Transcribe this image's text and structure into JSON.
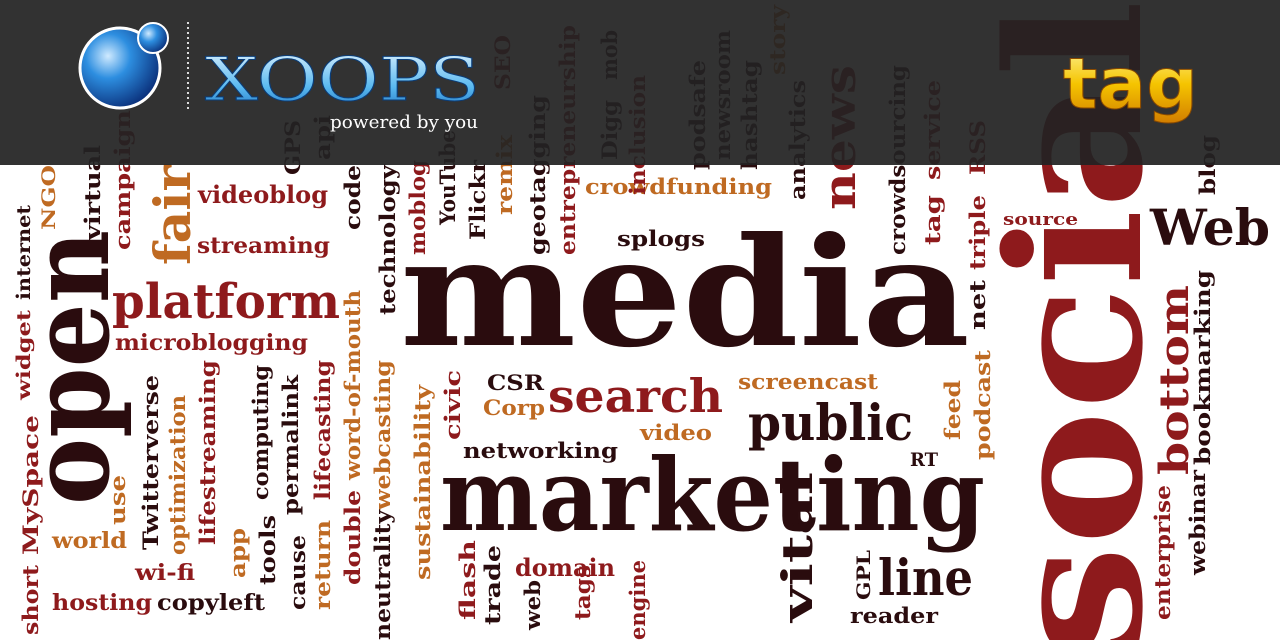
{
  "header": {
    "logo": "XOOPS",
    "tagline": "powered by you",
    "badge": "tag"
  },
  "words": [
    "media",
    "marketing",
    "platform",
    "search",
    "public",
    "line",
    "Web",
    "videoblog",
    "streaming",
    "microblogging",
    "crowdfunding",
    "splogs",
    "source",
    "screencast",
    "CSR",
    "Corp",
    "video",
    "networking",
    "RT",
    "world",
    "wi-fi",
    "hosting",
    "copyleft",
    "domain",
    "reader",
    "open",
    "social",
    "fair",
    "news",
    "bottom",
    "virtual",
    "campaign",
    "NGO",
    "internet",
    "widget",
    "MySpace",
    "short",
    "use",
    "Twitterverse",
    "optimization",
    "lifestreaming",
    "app",
    "computing",
    "tools",
    "permalink",
    "cause",
    "lifecasting",
    "return",
    "word-of-mouth",
    "double",
    "technology",
    "code",
    "webcasting",
    "neutrality",
    "sustainability",
    "civic",
    "flash",
    "trade",
    "moblog",
    "YouTube",
    "Flickr",
    "remix",
    "geotagging",
    "entrepreneurship",
    "inclusion",
    "Digg",
    "mob",
    "podsafe",
    "newsroom",
    "hashtag",
    "analytics",
    "story",
    "crowdsourcing",
    "service",
    "tag",
    "RSS",
    "triple",
    "net",
    "podcast",
    "feed",
    "enterprise",
    "webinar",
    "bookmarking",
    "blog",
    "SEO",
    "GPS",
    "api",
    "web",
    "tags",
    "engine",
    "vital",
    "GPL"
  ]
}
